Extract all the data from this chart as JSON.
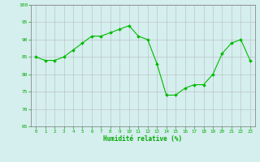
{
  "x": [
    0,
    1,
    2,
    3,
    4,
    5,
    6,
    7,
    8,
    9,
    10,
    11,
    12,
    13,
    14,
    15,
    16,
    17,
    18,
    19,
    20,
    21,
    22,
    23
  ],
  "y": [
    85,
    84,
    84,
    85,
    87,
    89,
    91,
    91,
    92,
    93,
    94,
    91,
    90,
    83,
    74,
    74,
    76,
    77,
    77,
    80,
    86,
    89,
    90,
    84
  ],
  "line_color": "#00bb00",
  "marker_color": "#00bb00",
  "bg_color": "#d5eeee",
  "grid_color": "#b0b0b0",
  "xlabel": "Humidité relative (%)",
  "xlabel_color": "#00aa00",
  "ylim": [
    65,
    100
  ],
  "xlim": [
    -0.5,
    23.5
  ],
  "yticks": [
    65,
    70,
    75,
    80,
    85,
    90,
    95,
    100
  ],
  "xticks": [
    0,
    1,
    2,
    3,
    4,
    5,
    6,
    7,
    8,
    9,
    10,
    11,
    12,
    13,
    14,
    15,
    16,
    17,
    18,
    19,
    20,
    21,
    22,
    23
  ],
  "tick_color": "#00aa00",
  "figsize": [
    3.2,
    2.0
  ],
  "dpi": 100
}
